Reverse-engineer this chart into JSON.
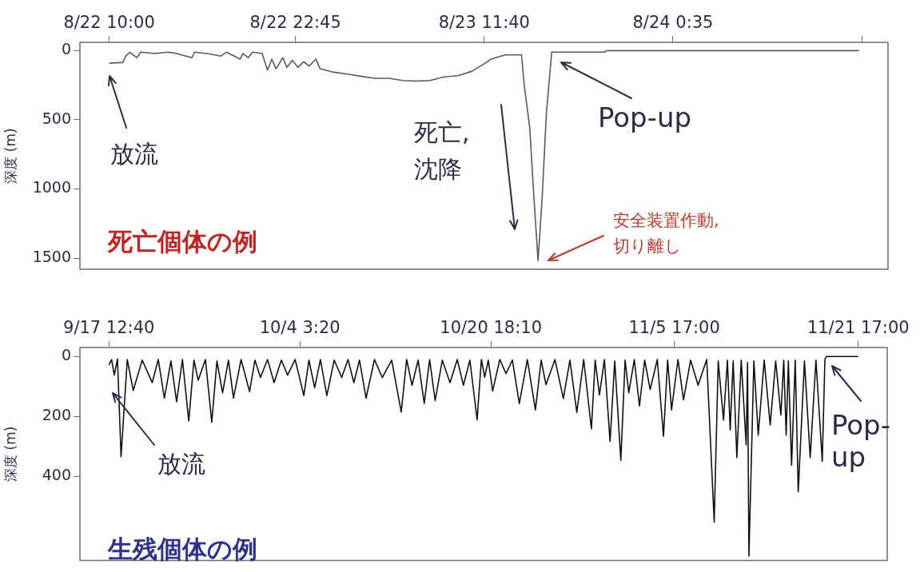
{
  "chart_data": [
    {
      "type": "line",
      "title": "死亡個体の例",
      "ylabel": "深度 (m)",
      "marker": "none",
      "xlim": [
        "--08-22T08:00",
        "--08-24T15:18"
      ],
      "ylim": [
        1580,
        -60
      ],
      "xticks": [
        {
          "value": "--08-22T10:00",
          "label": "8/22 10:00"
        },
        {
          "value": "--08-22T22:45",
          "label": "8/22 22:45"
        },
        {
          "value": "--08-23T11:40",
          "label": "8/23 11:40"
        },
        {
          "value": "--08-24T00:35",
          "label": "8/24 0:35"
        },
        {
          "value": "--08-24T13:30",
          "label": null
        }
      ],
      "yticks": [
        0,
        500,
        1000,
        1500
      ],
      "x": [
        "--08-22T10:00",
        "--08-22T10:56",
        "--08-22T11:08",
        "--08-22T11:25",
        "--08-22T11:53",
        "--08-22T12:10",
        "--08-22T13:07",
        "--08-22T14:03",
        "--08-22T14:37",
        "--08-22T15:40",
        "--08-22T15:50",
        "--08-22T16:42",
        "--08-22T17:38",
        "--08-22T18:01",
        "--08-22T18:58",
        "--08-22T19:09",
        "--08-22T19:31",
        "--08-22T19:49",
        "--08-22T20:28",
        "--08-22T20:50",
        "--08-22T21:08",
        "--08-22T21:25",
        "--08-22T21:53",
        "--08-22T22:10",
        "--08-22T22:32",
        "--08-22T22:55",
        "--08-22T23:18",
        "--08-22T23:41",
        "--08-23T00:09",
        "--08-23T00:26",
        "--08-23T01:22",
        "--08-23T02:19",
        "--08-23T03:16",
        "--08-23T04:12",
        "--08-23T05:09",
        "--08-23T06:05",
        "--08-23T07:02",
        "--08-23T07:58",
        "--08-23T08:55",
        "--08-23T09:52",
        "--08-23T10:48",
        "--08-23T11:44",
        "--08-23T12:08",
        "--08-23T13:05",
        "--08-23T14:13",
        "--08-23T14:25",
        "--08-23T14:47",
        "--08-23T15:04",
        "--08-23T15:21",
        "--08-23T15:38",
        "--08-23T15:55",
        "--08-23T16:17",
        "--08-23T19:53",
        "--08-23T20:04",
        "--08-24T13:19"
      ],
      "series": [
        {
          "color": "#5a5a5a",
          "values": [
            91,
            85,
            40,
            11,
            51,
            11,
            21,
            11,
            21,
            51,
            11,
            21,
            40,
            11,
            61,
            21,
            51,
            11,
            21,
            141,
            61,
            131,
            51,
            121,
            70,
            121,
            80,
            111,
            61,
            131,
            156,
            170,
            186,
            200,
            200,
            216,
            220,
            216,
            190,
            181,
            150,
            91,
            61,
            31,
            31,
            260,
            560,
            1060,
            1517,
            1060,
            460,
            11,
            11,
            0,
            0
          ]
        }
      ],
      "annotations": [
        "放流",
        "死亡,\n沈降",
        "Pop-up",
        "安全装置作動,\n切り離し"
      ]
    },
    {
      "type": "line",
      "title": "生残個体の例",
      "ylabel": "深度 (m)",
      "marker": "none",
      "xlim": [
        "--09-15T00:16",
        "--11-24T05:28"
      ],
      "ylim": [
        680,
        -30
      ],
      "xticks": [
        {
          "value": "--09-17T12:40",
          "label": "9/17 12:40"
        },
        {
          "value": "--10-04T03:20",
          "label": "10/4 3:20"
        },
        {
          "value": "--10-20T18:10",
          "label": "10/20 18:10"
        },
        {
          "value": "--11-05T17:00",
          "label": "11/5 17:00"
        },
        {
          "value": "--11-21T17:00",
          "label": "11/21 17:00"
        }
      ],
      "yticks": [
        0,
        200,
        400
      ],
      "x": [
        "--09-17T12:40",
        "--09-17T18:26",
        "--09-17T23:57",
        "--09-18T06:40",
        "--09-18T14:06",
        "--09-19T03:04",
        "--09-19T15:33",
        "--09-20T10:16",
        "--09-21T07:09",
        "--09-21T19:52",
        "--09-22T08:35",
        "--09-22T22:16",
        "--09-23T10:02",
        "--09-23T22:16",
        "--09-24T11:28",
        "--09-24T22:16",
        "--09-25T07:09",
        "--09-25T22:16",
        "--09-26T11:28",
        "--09-26T22:16",
        "--09-27T10:02",
        "--09-27T22:16",
        "--09-28T08:50",
        "--09-29T00:40",
        "--09-29T18:26",
        "--09-30T05:28",
        "--09-30T17:14",
        "--10-01T07:52",
        "--10-01T21:33",
        "--10-02T12:40",
        "--10-03T01:38",
        "--10-03T17:28",
        "--10-04T11:42",
        "--10-04T22:16",
        "--10-05T10:16",
        "--10-05T22:16",
        "--10-06T11:42",
        "--10-07T03:04",
        "--10-07T18:40",
        "--10-08T07:52",
        "--10-08T20:06",
        "--10-09T07:52",
        "--10-09T21:33",
        "--10-10T15:04",
        "--10-11T07:23",
        "--10-12T03:04",
        "--10-12T23:00",
        "--10-13T10:16",
        "--10-13T21:33",
        "--10-14T10:16",
        "--10-14T23:00",
        "--10-15T10:16",
        "--10-15T21:47",
        "--10-16T12:40",
        "--10-17T04:45",
        "--10-17T19:52",
        "--10-18T08:50",
        "--10-18T22:16",
        "--10-19T13:23",
        "--10-19T22:16",
        "--10-20T05:14",
        "--10-20T12:40",
        "--10-20T21:47",
        "--10-21T12:40",
        "--10-22T01:38",
        "--10-22T15:04",
        "--10-23T05:28",
        "--10-23T22:16",
        "--10-24T15:04",
        "--10-25T03:04",
        "--10-25T13:09",
        "--10-26T07:52",
        "--10-27T01:23",
        "--10-27T15:04",
        "--10-28T05:28",
        "--10-28T19:52",
        "--10-29T11:57",
        "--10-29T19:52",
        "--10-30T04:45",
        "--10-30T15:04",
        "--10-31T02:50",
        "--10-31T12:40",
        "--11-01T01:23",
        "--11-01T10:16",
        "--11-01T17:57",
        "--11-02T05:28",
        "--11-02T16:16",
        "--11-03T03:04",
        "--11-03T14:35",
        "--11-04T05:28",
        "--11-04T18:26",
        "--11-05T03:04",
        "--11-05T11:14",
        "--11-06T00:40",
        "--11-06T12:11",
        "--11-07T03:04",
        "--11-07T18:40",
        "--11-08T12:40",
        "--11-09T04:16",
        "--11-09T12:40",
        "--11-09T23:42",
        "--11-10T07:52",
        "--11-10T13:38",
        "--11-10T19:52",
        "--11-11T03:33",
        "--11-11T12:40",
        "--11-11T23:00",
        "--11-12T01:52",
        "--11-12T04:45",
        "--11-12T15:04",
        "--11-13T00:11",
        "--11-13T12:40",
        "--11-14T01:09",
        "--11-14T12:40",
        "--11-14T23:28",
        "--11-15T05:28",
        "--11-15T10:30",
        "--11-15T15:04",
        "--11-15T21:47",
        "--11-16T05:28",
        "--11-16T11:42",
        "--11-17T00:40",
        "--11-17T12:40",
        "--11-18T00:40",
        "--11-18T13:52",
        "--11-18T19:23",
        "--11-18T22:16",
        "--11-21T17:00"
      ],
      "series": [
        {
          "color": "#111111",
          "values": [
            28,
            10,
            62,
            8,
            334,
            10,
            113,
            12,
            87,
            10,
            139,
            15,
            151,
            10,
            215,
            12,
            79,
            10,
            219,
            15,
            121,
            12,
            139,
            10,
            117,
            12,
            70,
            10,
            87,
            12,
            62,
            10,
            130,
            12,
            104,
            10,
            130,
            12,
            70,
            10,
            87,
            12,
            139,
            10,
            70,
            12,
            185,
            10,
            96,
            12,
            156,
            10,
            147,
            12,
            87,
            10,
            96,
            12,
            211,
            10,
            69,
            12,
            115,
            10,
            57,
            12,
            157,
            10,
            178,
            12,
            94,
            10,
            140,
            12,
            186,
            10,
            241,
            12,
            128,
            10,
            283,
            15,
            346,
            12,
            121,
            10,
            165,
            12,
            110,
            10,
            266,
            12,
            178,
            10,
            144,
            12,
            96,
            10,
            552,
            15,
            212,
            12,
            245,
            15,
            337,
            12,
            295,
            20,
            665,
            15,
            262,
            12,
            228,
            15,
            195,
            12,
            262,
            15,
            363,
            12,
            451,
            15,
            337,
            12,
            350,
            10,
            0,
            0
          ]
        }
      ],
      "annotations": [
        "放流",
        "Pop-\nup"
      ]
    }
  ]
}
